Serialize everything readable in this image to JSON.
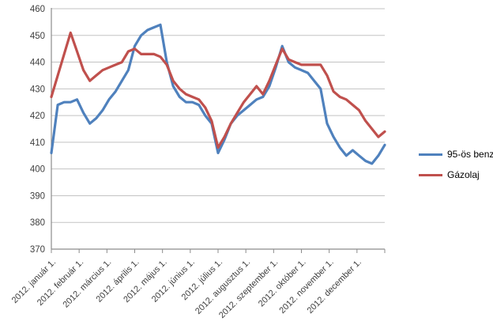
{
  "chart_data": {
    "type": "line",
    "title": "",
    "xlabel": "",
    "ylabel": "",
    "ylim": [
      370,
      460
    ],
    "y_ticks": [
      370,
      380,
      390,
      400,
      410,
      420,
      430,
      440,
      450,
      460
    ],
    "x_tick_labels": [
      "2012. január 1.",
      "2012. február 1.",
      "2012. március 1.",
      "2012. április 1.",
      "2012. május 1.",
      "2012. június 1.",
      "2012. július 1.",
      "2012. augusztus 1.",
      "2012. szeptember 1.",
      "2012. október 1.",
      "2012. november 1.",
      "2012. december 1."
    ],
    "x_resolution": "weekly",
    "grid": "horizontal",
    "legend_position": "right",
    "colors": {
      "grid": "#C3C3C3",
      "axis": "#8C8C8C",
      "text": "#3F3F3F"
    },
    "series": [
      {
        "name": "95-ös benzin",
        "color": "#4F81BD",
        "values": [
          406,
          424,
          425,
          425,
          426,
          421,
          417,
          419,
          422,
          426,
          429,
          433,
          437,
          446,
          450,
          452,
          453,
          454,
          440,
          431,
          427,
          425,
          425,
          424,
          420,
          417,
          406,
          411,
          417,
          420,
          422,
          424,
          426,
          427,
          431,
          438,
          446,
          440,
          438,
          437,
          436,
          433,
          430,
          417,
          412,
          408,
          405,
          407,
          405,
          403,
          402,
          405,
          409
        ]
      },
      {
        "name": "Gázolaj",
        "color": "#C0504D",
        "values": [
          427,
          435,
          443,
          451,
          444,
          437,
          433,
          435,
          437,
          438,
          439,
          440,
          444,
          445,
          443,
          443,
          443,
          442,
          439,
          433,
          430,
          428,
          427,
          426,
          423,
          418,
          408,
          412,
          417,
          421,
          425,
          428,
          431,
          428,
          433,
          439,
          445,
          441,
          440,
          439,
          439,
          439,
          439,
          435,
          429,
          427,
          426,
          424,
          422,
          418,
          415,
          412,
          414
        ]
      }
    ]
  }
}
